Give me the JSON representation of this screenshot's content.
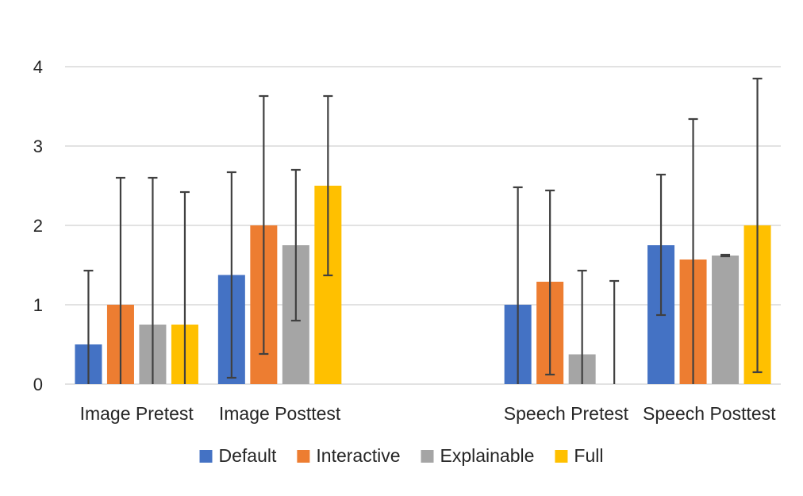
{
  "chart_data": {
    "type": "bar",
    "categories": [
      "Image Pretest",
      "Image Posttest",
      "",
      "Speech Pretest",
      "Speech Posttest"
    ],
    "ylim": [
      0,
      4
    ],
    "yticks": [
      "0",
      "1",
      "2",
      "3",
      "4"
    ],
    "grid": true,
    "legend_position": "bottom",
    "series": [
      {
        "name": "Default",
        "color": "#4472C4",
        "values": [
          0.5,
          1.375,
          null,
          1.0,
          1.75
        ],
        "err_low": [
          0,
          0.08,
          null,
          0,
          0.87
        ],
        "err_high": [
          1.43,
          2.67,
          null,
          2.48,
          2.64
        ]
      },
      {
        "name": "Interactive",
        "color": "#ED7D31",
        "values": [
          1.0,
          2.0,
          null,
          1.29,
          1.57
        ],
        "err_low": [
          0,
          0.38,
          null,
          0.12,
          0
        ],
        "err_high": [
          2.6,
          3.63,
          null,
          2.44,
          3.34
        ]
      },
      {
        "name": "Explainable",
        "color": "#A5A5A5",
        "values": [
          0.75,
          1.75,
          null,
          0.375,
          1.62
        ],
        "err_low": [
          0,
          0.8,
          null,
          0,
          1.61
        ],
        "err_high": [
          2.6,
          2.7,
          null,
          1.43,
          1.63
        ]
      },
      {
        "name": "Full",
        "color": "#FFC000",
        "values": [
          0.75,
          2.5,
          null,
          0.0,
          2.0
        ],
        "err_low": [
          0,
          1.37,
          null,
          0,
          0.15
        ],
        "err_high": [
          2.42,
          3.63,
          null,
          1.3,
          3.85
        ]
      }
    ]
  }
}
